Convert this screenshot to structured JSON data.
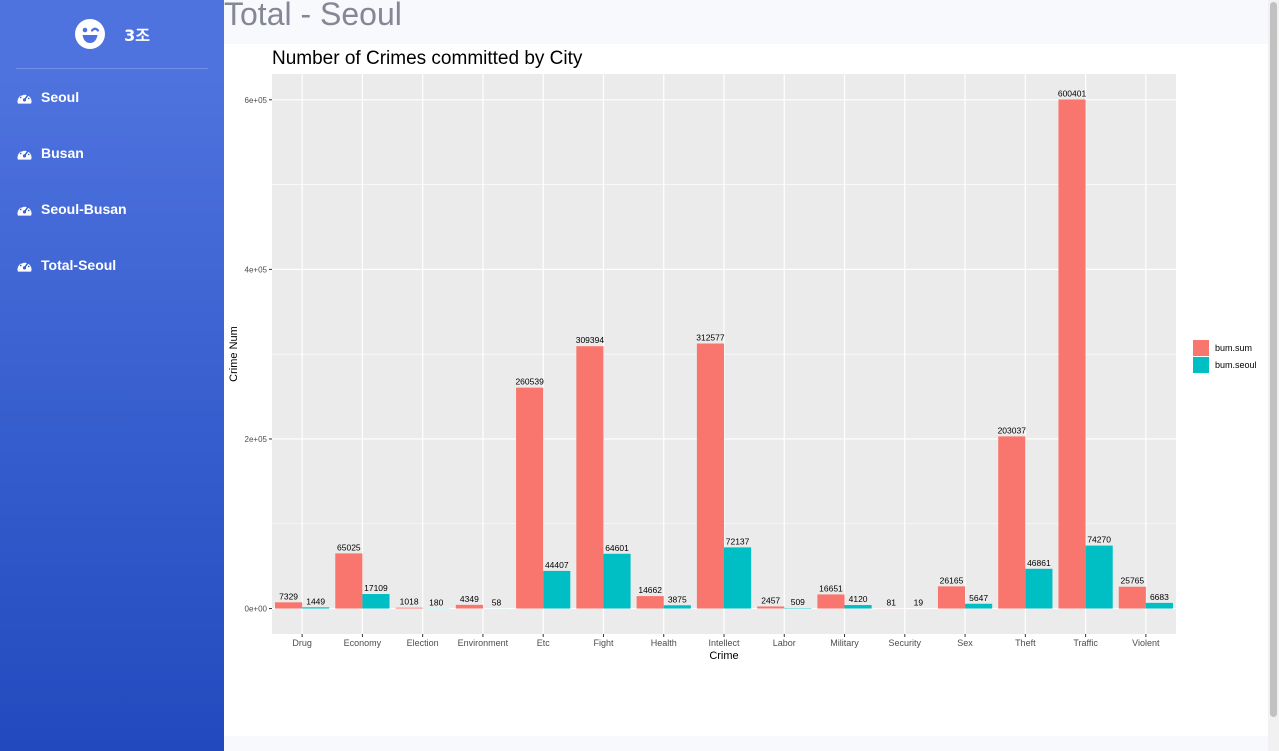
{
  "sidebar": {
    "brand": "3조",
    "items": [
      {
        "label": "Seoul",
        "icon": "dashboard-icon"
      },
      {
        "label": "Busan",
        "icon": "dashboard-icon"
      },
      {
        "label": "Seoul-Busan",
        "icon": "dashboard-icon"
      },
      {
        "label": "Total-Seoul",
        "icon": "dashboard-icon"
      }
    ]
  },
  "page": {
    "title": "Total - Seoul"
  },
  "colors": {
    "series1": "#F8766D",
    "series2": "#00BFC4",
    "panel": "#EBEBEB"
  },
  "chart_data": {
    "type": "bar",
    "title": "Number of Crimes committed by City",
    "xlabel": "Crime",
    "ylabel": "Crime Num",
    "categories": [
      "Drug",
      "Economy",
      "Election",
      "Environment",
      "Etc",
      "Fight",
      "Health",
      "Intellect",
      "Labor",
      "Military",
      "Security",
      "Sex",
      "Theft",
      "Traffic",
      "Violent"
    ],
    "series": [
      {
        "name": "bum.sum",
        "values": [
          7329,
          65025,
          1018,
          4349,
          260539,
          309394,
          14662,
          312577,
          2457,
          16651,
          81,
          26165,
          203037,
          600401,
          25765
        ]
      },
      {
        "name": "bum.seoul",
        "values": [
          1449,
          17109,
          180,
          58,
          44407,
          64601,
          3875,
          72137,
          509,
          4120,
          19,
          5647,
          46861,
          74270,
          6683
        ]
      }
    ],
    "yticks": [
      0,
      200000,
      400000,
      600000
    ],
    "ytick_labels": [
      "0e+00",
      "2e+05",
      "4e+05",
      "6e+05"
    ],
    "ylim": [
      -30020,
      630421
    ],
    "legend": "right",
    "grid": true
  }
}
